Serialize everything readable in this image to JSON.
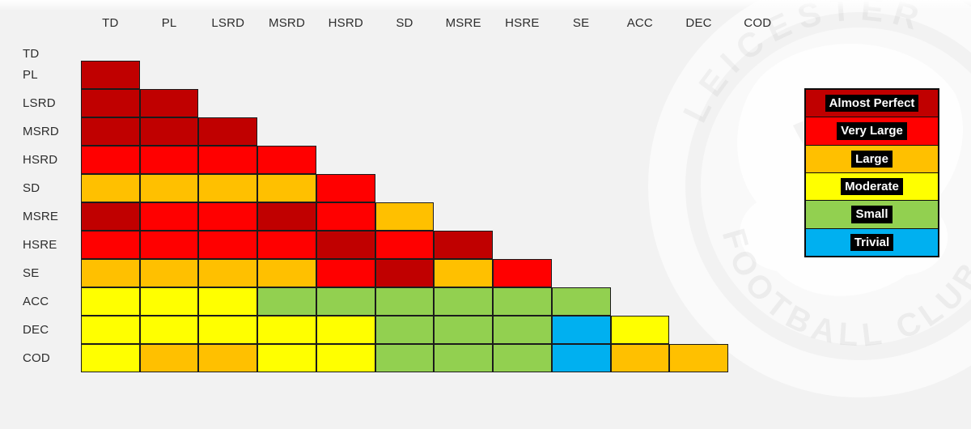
{
  "palette": {
    "almost_perfect": "#C00000",
    "very_large": "#FF0000",
    "large": "#FFC000",
    "moderate": "#FFFF00",
    "small": "#92D050",
    "trivial": "#00B0F0"
  },
  "legend": {
    "items": [
      {
        "label": "Almost Perfect",
        "key": "almost_perfect"
      },
      {
        "label": "Very Large",
        "key": "very_large"
      },
      {
        "label": "Large",
        "key": "large"
      },
      {
        "label": "Moderate",
        "key": "moderate"
      },
      {
        "label": "Small",
        "key": "small"
      },
      {
        "label": "Trivial",
        "key": "trivial"
      }
    ]
  },
  "chart_data": {
    "type": "heatmap",
    "layout": "lower-triangular-correlation-matrix",
    "legend_position": "right",
    "columns": [
      "TD",
      "PL",
      "LSRD",
      "MSRD",
      "HSRD",
      "SD",
      "MSRE",
      "HSRE",
      "SE",
      "ACC",
      "DEC",
      "COD"
    ],
    "rows": [
      "TD",
      "PL",
      "LSRD",
      "MSRD",
      "HSRD",
      "SD",
      "MSRE",
      "HSRE",
      "SE",
      "ACC",
      "DEC",
      "COD"
    ],
    "cells": [
      {
        "row": "TD",
        "values": []
      },
      {
        "row": "PL",
        "values": [
          "almost_perfect"
        ]
      },
      {
        "row": "LSRD",
        "values": [
          "almost_perfect",
          "almost_perfect"
        ]
      },
      {
        "row": "MSRD",
        "values": [
          "almost_perfect",
          "almost_perfect",
          "almost_perfect"
        ]
      },
      {
        "row": "HSRD",
        "values": [
          "very_large",
          "very_large",
          "very_large",
          "very_large"
        ]
      },
      {
        "row": "SD",
        "values": [
          "large",
          "large",
          "large",
          "large",
          "very_large"
        ]
      },
      {
        "row": "MSRE",
        "values": [
          "almost_perfect",
          "very_large",
          "very_large",
          "almost_perfect",
          "very_large",
          "large"
        ]
      },
      {
        "row": "HSRE",
        "values": [
          "very_large",
          "very_large",
          "very_large",
          "very_large",
          "almost_perfect",
          "very_large",
          "almost_perfect"
        ]
      },
      {
        "row": "SE",
        "values": [
          "large",
          "large",
          "large",
          "large",
          "very_large",
          "almost_perfect",
          "large",
          "very_large"
        ]
      },
      {
        "row": "ACC",
        "values": [
          "moderate",
          "moderate",
          "moderate",
          "small",
          "small",
          "small",
          "small",
          "small",
          "small"
        ]
      },
      {
        "row": "DEC",
        "values": [
          "moderate",
          "moderate",
          "moderate",
          "moderate",
          "moderate",
          "small",
          "small",
          "small",
          "trivial",
          "moderate"
        ]
      },
      {
        "row": "COD",
        "values": [
          "moderate",
          "large",
          "large",
          "moderate",
          "moderate",
          "small",
          "small",
          "small",
          "trivial",
          "large",
          "large"
        ]
      }
    ]
  },
  "watermark": {
    "arc_text_top": "LEICESTER",
    "arc_text_bottom": "FOOTBALL CLUB"
  }
}
